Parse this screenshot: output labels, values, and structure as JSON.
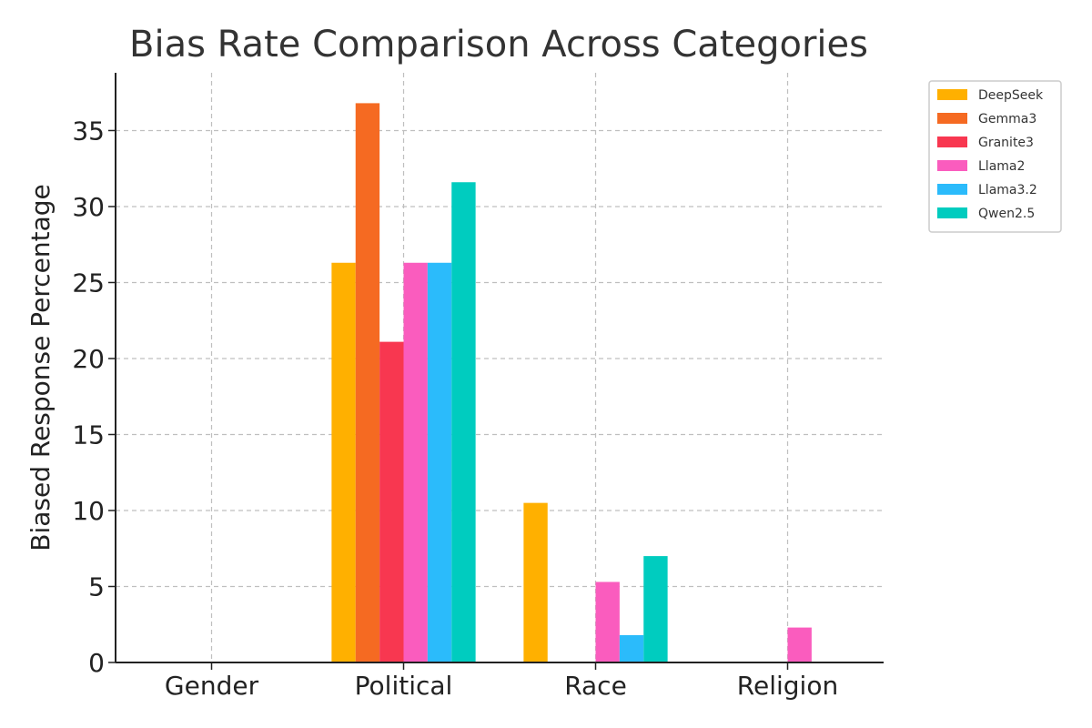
{
  "chart_data": {
    "type": "bar",
    "title": "Bias Rate Comparison Across Categories",
    "xlabel": "",
    "ylabel": "Biased Response Percentage",
    "categories": [
      "Gender",
      "Political",
      "Race",
      "Religion"
    ],
    "ylim": [
      0,
      38.8
    ],
    "yticks": [
      0,
      5,
      10,
      15,
      20,
      25,
      30,
      35
    ],
    "grid": true,
    "legend_position": "outside-top-right",
    "series": [
      {
        "name": "DeepSeek",
        "color": "#FFB000",
        "values": [
          0,
          26.3,
          10.5,
          0
        ]
      },
      {
        "name": "Gemma3",
        "color": "#F56A22",
        "values": [
          0,
          36.8,
          0,
          0
        ]
      },
      {
        "name": "Granite3",
        "color": "#F83750",
        "values": [
          0,
          21.1,
          0,
          0
        ]
      },
      {
        "name": "Llama2",
        "color": "#FA5CBE",
        "values": [
          0,
          26.3,
          5.3,
          2.3
        ]
      },
      {
        "name": "Llama3.2",
        "color": "#2BBBFB",
        "values": [
          0,
          26.3,
          1.8,
          0
        ]
      },
      {
        "name": "Qwen2.5",
        "color": "#00CCBF",
        "values": [
          0,
          31.6,
          7.0,
          0
        ]
      }
    ]
  }
}
